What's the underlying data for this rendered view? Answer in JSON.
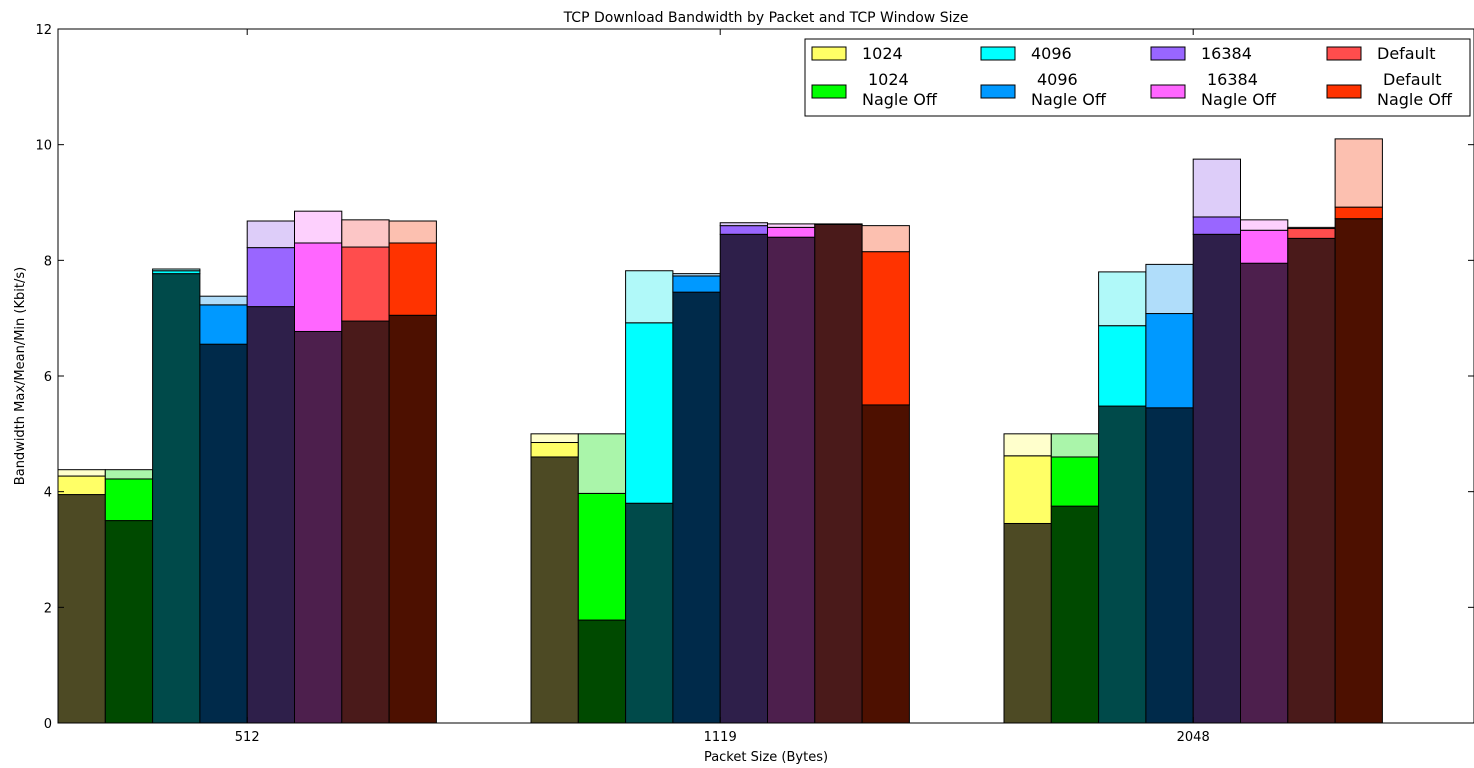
{
  "chart_data": {
    "type": "bar",
    "title": "TCP Download Bandwidth by Packet and TCP Window Size",
    "xlabel": "Packet Size (Bytes)",
    "ylabel": "Bandwidth Max/Mean/Min (Kbit/s)",
    "categories": [
      "512",
      "1119",
      "2048"
    ],
    "ylim": [
      0,
      12
    ],
    "yticks": [
      "0",
      "2",
      "4",
      "6",
      "8",
      "10",
      "12"
    ],
    "grid": false,
    "legend_position": "top-right",
    "series": [
      {
        "label_line1": "1024",
        "label_line2": "",
        "color": "#ffff66",
        "max_color": "#ffffcc",
        "min_color": "#4d4a24",
        "min": [
          3.95,
          4.6,
          3.45
        ],
        "mean": [
          4.27,
          4.85,
          4.62
        ],
        "max": [
          4.38,
          5.0,
          5.0
        ]
      },
      {
        "label_line1": "1024",
        "label_line2": "Nagle Off",
        "color": "#00ff00",
        "max_color": "#aaf5aa",
        "min_color": "#004a00",
        "min": [
          3.5,
          1.78,
          3.75
        ],
        "mean": [
          4.22,
          3.97,
          4.6
        ],
        "max": [
          4.38,
          5.0,
          5.0
        ]
      },
      {
        "label_line1": "4096",
        "label_line2": "",
        "color": "#00ffff",
        "max_color": "#b0f9f9",
        "min_color": "#004a4a",
        "min": [
          7.77,
          3.8,
          5.48
        ],
        "mean": [
          7.82,
          6.92,
          6.87
        ],
        "max": [
          7.85,
          7.82,
          7.8
        ]
      },
      {
        "label_line1": "4096",
        "label_line2": "Nagle Off",
        "color": "#0099ff",
        "max_color": "#b0ddfa",
        "min_color": "#002a4a",
        "min": [
          6.55,
          7.45,
          5.45
        ],
        "mean": [
          7.23,
          7.73,
          7.08
        ],
        "max": [
          7.38,
          7.77,
          7.93
        ]
      },
      {
        "label_line1": "16384",
        "label_line2": "",
        "color": "#9966ff",
        "max_color": "#ddcdf9",
        "min_color": "#2e1f4a",
        "min": [
          7.2,
          8.45,
          8.45
        ],
        "mean": [
          8.22,
          8.6,
          8.75
        ],
        "max": [
          8.68,
          8.65,
          9.75
        ]
      },
      {
        "label_line1": "16384",
        "label_line2": "Nagle Off",
        "color": "#ff66ff",
        "max_color": "#fdd0fd",
        "min_color": "#4d1f4d",
        "min": [
          6.77,
          8.4,
          7.95
        ],
        "mean": [
          8.3,
          8.57,
          8.52
        ],
        "max": [
          8.85,
          8.63,
          8.7
        ]
      },
      {
        "label_line1": "Default",
        "label_line2": "",
        "color": "#ff4d4d",
        "max_color": "#fcc6c6",
        "min_color": "#4a1a1a",
        "min": [
          6.95,
          8.62,
          8.38
        ],
        "mean": [
          8.23,
          8.62,
          8.55
        ],
        "max": [
          8.7,
          8.63,
          8.57
        ]
      },
      {
        "label_line1": "Default",
        "label_line2": "Nagle Off",
        "color": "#ff3300",
        "max_color": "#fcc0b0",
        "min_color": "#4d1000",
        "min": [
          7.05,
          5.5,
          8.72
        ],
        "mean": [
          8.3,
          8.15,
          8.92
        ],
        "max": [
          8.68,
          8.6,
          10.1
        ]
      }
    ]
  }
}
